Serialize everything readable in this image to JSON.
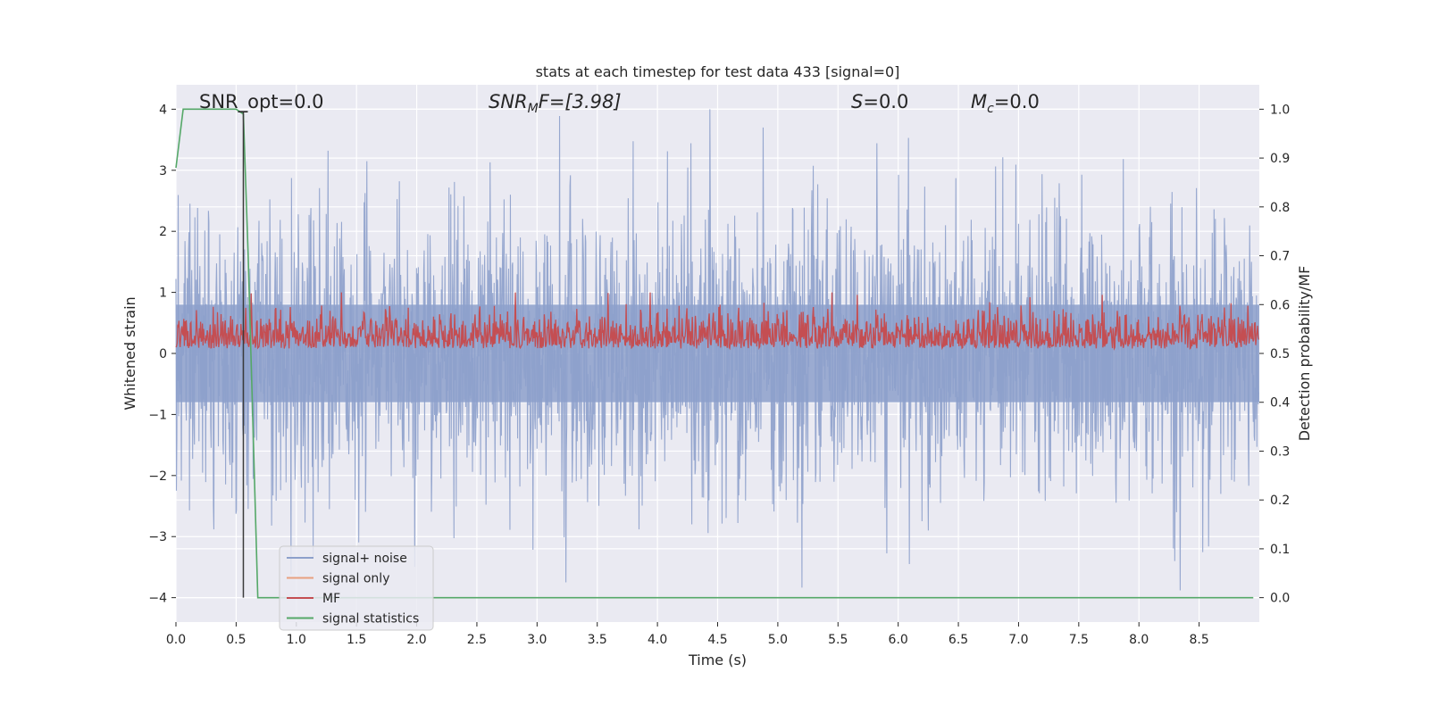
{
  "chart_data": {
    "type": "line",
    "title": "stats at each timestep for test data 433 [signal=0]",
    "xlabel": "Time (s)",
    "ylabel_left": "Whitened strain",
    "ylabel_right": "Detection probability/MF",
    "xlim": [
      0.0,
      9.0
    ],
    "ylim_left": [
      -4.4,
      4.4
    ],
    "ylim_right": [
      -0.05,
      1.05
    ],
    "x_ticks": [
      "0.0",
      "0.5",
      "1.0",
      "1.5",
      "2.0",
      "2.5",
      "3.0",
      "3.5",
      "4.0",
      "4.5",
      "5.0",
      "5.5",
      "6.0",
      "6.5",
      "7.0",
      "7.5",
      "8.0",
      "8.5"
    ],
    "x_tick_values": [
      0.0,
      0.5,
      1.0,
      1.5,
      2.0,
      2.5,
      3.0,
      3.5,
      4.0,
      4.5,
      5.0,
      5.5,
      6.0,
      6.5,
      7.0,
      7.5,
      8.0,
      8.5
    ],
    "y_ticks_left": [
      "4",
      "3",
      "2",
      "1",
      "0",
      "−1",
      "−2",
      "−3",
      "−4"
    ],
    "y_tick_values_left": [
      4,
      3,
      2,
      1,
      0,
      -1,
      -2,
      -3,
      -4
    ],
    "y_ticks_right": [
      "1.0",
      "0.9",
      "0.8",
      "0.7",
      "0.6",
      "0.5",
      "0.4",
      "0.3",
      "0.2",
      "0.1",
      "0.0"
    ],
    "y_tick_values_right": [
      1.0,
      0.9,
      0.8,
      0.7,
      0.6,
      0.5,
      0.4,
      0.3,
      0.2,
      0.1,
      0.0
    ],
    "grid": true,
    "legend_position": "bottom-left",
    "annotations": {
      "snr_opt": "SNR_opt=0.0",
      "snr_mf_italic": "SNR",
      "snr_mf_sub": "M",
      "snr_mf_rest": "F=[3.98]",
      "s_italic": "S",
      "s_rest": "=0.0",
      "mc_italic": "M",
      "mc_sub": "c",
      "mc_rest": "=0.0"
    },
    "series": [
      {
        "name": "signal+ noise",
        "color": "#8da0cb",
        "axis": "left",
        "description_values": {
          "y_range": [
            -4.0,
            4.0
          ]
        }
      },
      {
        "name": "signal only",
        "color": "#e8a07f",
        "axis": "left"
      },
      {
        "name": "MF",
        "color": "#c44e52",
        "axis": "left",
        "description_values": {
          "y_range": [
            0.0,
            1.0
          ]
        }
      },
      {
        "name": "signal statistics",
        "color": "#55a868",
        "axis": "right",
        "x": [
          0.0,
          0.06,
          0.5,
          0.56,
          0.6,
          0.68,
          0.72,
          8.95
        ],
        "y": [
          0.88,
          1.0,
          1.0,
          0.99,
          0.7,
          0.0,
          0.0,
          0.0
        ]
      }
    ],
    "marker_line": {
      "x": 0.56,
      "y_top_right": 0.995,
      "y_bottom_right": 0.0,
      "color": "#3b3b3b"
    }
  },
  "colors": {
    "plot_bg": "#eaeaf2",
    "grid": "#ffffff",
    "text": "#262626"
  }
}
